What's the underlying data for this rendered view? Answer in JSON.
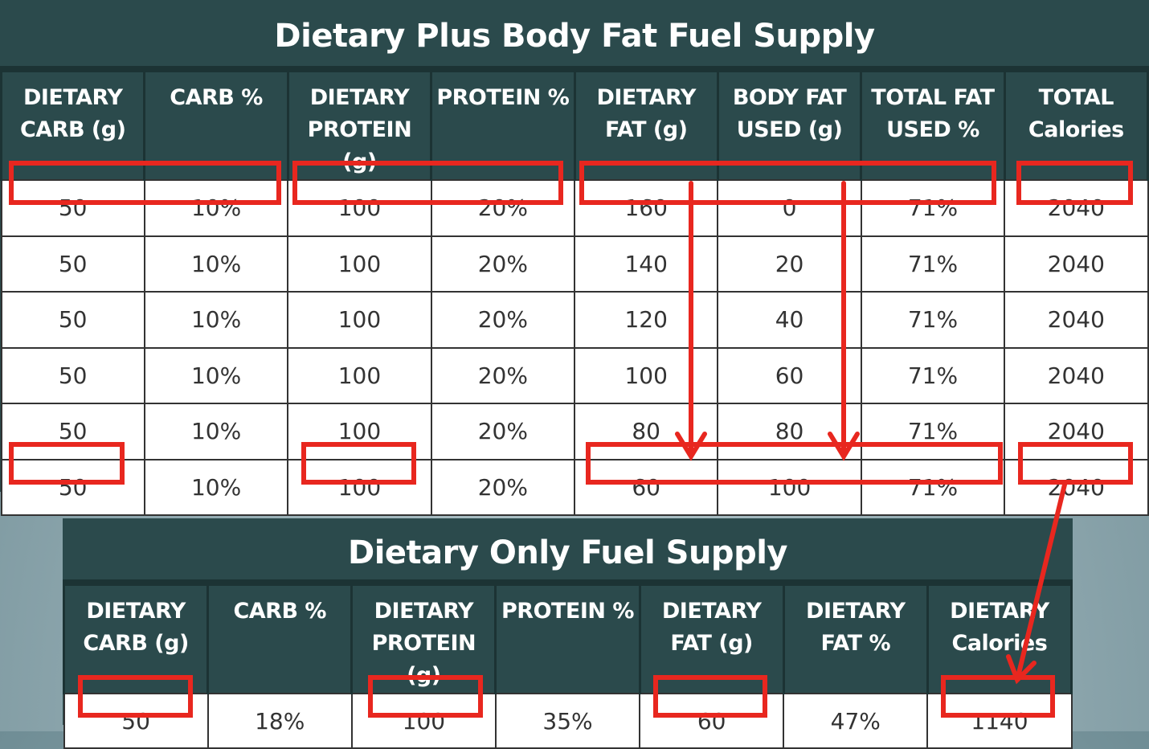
{
  "top": {
    "title": "Dietary Plus Body Fat Fuel Supply",
    "headers": [
      [
        "DIETARY",
        "CARB (g)"
      ],
      [
        "CARB %"
      ],
      [
        "DIETARY",
        "PROTEIN (g)"
      ],
      [
        "PROTEIN %"
      ],
      [
        "DIETARY",
        "FAT (g)"
      ],
      [
        "BODY FAT",
        "USED (g)"
      ],
      [
        "TOTAL FAT",
        "USED %"
      ],
      [
        "TOTAL",
        "Calories"
      ]
    ],
    "rows": [
      [
        "50",
        "10%",
        "100",
        "20%",
        "160",
        "0",
        "71%",
        "2040"
      ],
      [
        "50",
        "10%",
        "100",
        "20%",
        "140",
        "20",
        "71%",
        "2040"
      ],
      [
        "50",
        "10%",
        "100",
        "20%",
        "120",
        "40",
        "71%",
        "2040"
      ],
      [
        "50",
        "10%",
        "100",
        "20%",
        "100",
        "60",
        "71%",
        "2040"
      ],
      [
        "50",
        "10%",
        "100",
        "20%",
        "80",
        "80",
        "71%",
        "2040"
      ],
      [
        "50",
        "10%",
        "100",
        "20%",
        "60",
        "100",
        "71%",
        "2040"
      ]
    ]
  },
  "bottom": {
    "title": "Dietary Only Fuel Supply",
    "headers": [
      [
        "DIETARY",
        "CARB (g)"
      ],
      [
        "CARB %"
      ],
      [
        "DIETARY",
        "PROTEIN (g)"
      ],
      [
        "PROTEIN %"
      ],
      [
        "DIETARY",
        "FAT (g)"
      ],
      [
        "DIETARY",
        "FAT %"
      ],
      [
        "DIETARY",
        "Calories"
      ]
    ],
    "rows": [
      [
        "50",
        "18%",
        "100",
        "35%",
        "60",
        "47%",
        "1140"
      ]
    ]
  }
}
